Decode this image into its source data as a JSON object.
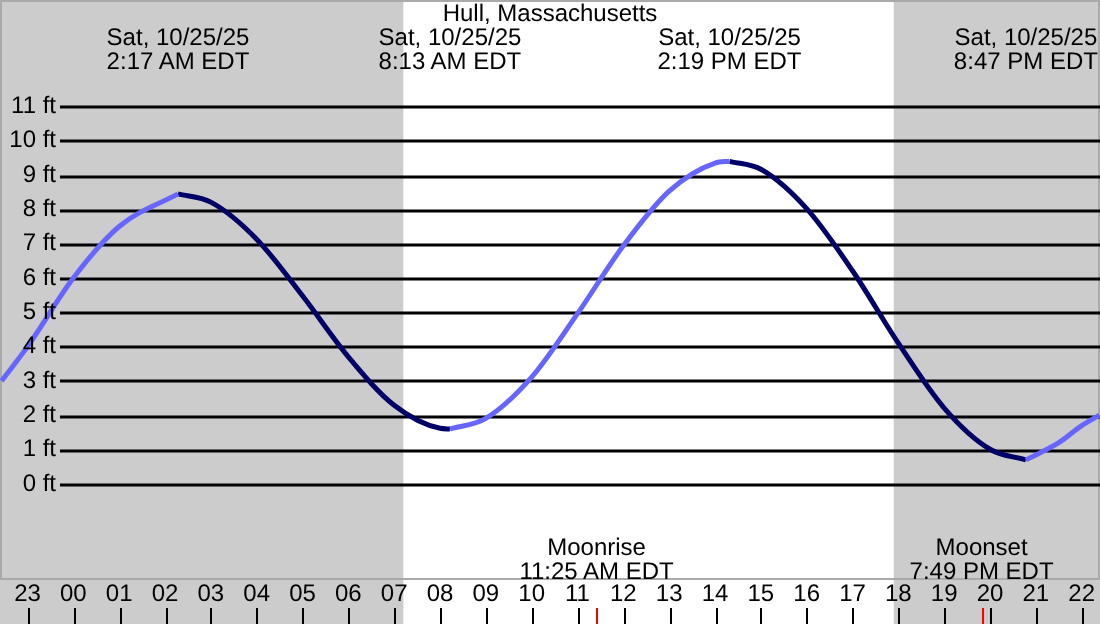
{
  "chart_data": {
    "type": "line",
    "title": "Hull, Massachusetts",
    "series": [
      {
        "color": "#6666ff",
        "x": [
          "--10-24T22:26",
          "--10-24T23:00",
          "--10-25T00:00",
          "--10-25T01:00",
          "--10-25T02:17",
          "--10-25T05:00",
          "--10-25T08:13",
          "--10-25T09:00",
          "--10-25T10:00",
          "--10-25T11:00",
          "--10-25T12:00",
          "--10-25T13:00",
          "--10-25T14:00",
          "--10-25T14:19",
          "--10-25T17:00",
          "--10-25T20:47",
          "--10-25T21:30",
          "--10-25T22:00",
          "--10-25T22:23"
        ],
        "values": [
          3.0,
          4.0,
          6.0,
          7.5,
          8.45,
          null,
          1.6,
          1.91,
          3.11,
          4.96,
          6.94,
          8.53,
          9.35,
          9.4,
          null,
          0.7,
          1.2,
          1.7,
          2.0
        ]
      },
      {
        "color": "#000066",
        "x": [
          "--10-25T02:17",
          "--10-25T03:00",
          "--10-25T04:00",
          "--10-25T05:00",
          "--10-25T06:00",
          "--10-25T07:00",
          "--10-25T08:00",
          "--10-25T08:13",
          "--10-25T11:00",
          "--10-25T14:19",
          "--10-25T15:00",
          "--10-25T16:00",
          "--10-25T17:00",
          "--10-25T18:00",
          "--10-25T19:00",
          "--10-25T20:00",
          "--10-25T20:47"
        ],
        "values": [
          8.45,
          8.21,
          7.13,
          5.48,
          3.7,
          2.29,
          1.62,
          1.6,
          null,
          9.4,
          9.17,
          8.02,
          6.21,
          4.1,
          2.21,
          1.01,
          0.7
        ]
      }
    ],
    "xlim": [
      "--10-24T22:24",
      "--10-25T22:24"
    ],
    "ylim": [
      -2.8,
      14.1
    ],
    "xticks": [
      {
        "value": "--10-24T23:00",
        "label": "23"
      },
      {
        "value": "--10-25T00:00",
        "label": "00"
      },
      {
        "value": "--10-25T01:00",
        "label": "01"
      },
      {
        "value": "--10-25T02:00",
        "label": "02"
      },
      {
        "value": "--10-25T03:00",
        "label": "03"
      },
      {
        "value": "--10-25T04:00",
        "label": "04"
      },
      {
        "value": "--10-25T05:00",
        "label": "05"
      },
      {
        "value": "--10-25T06:00",
        "label": "06"
      },
      {
        "value": "--10-25T07:00",
        "label": "07"
      },
      {
        "value": "--10-25T08:00",
        "label": "08"
      },
      {
        "value": "--10-25T09:00",
        "label": "09"
      },
      {
        "value": "--10-25T10:00",
        "label": "10"
      },
      {
        "value": "--10-25T11:00",
        "label": "11"
      },
      {
        "value": "--10-25T12:00",
        "label": "12"
      },
      {
        "value": "--10-25T13:00",
        "label": "13"
      },
      {
        "value": "--10-25T14:00",
        "label": "14"
      },
      {
        "value": "--10-25T15:00",
        "label": "15"
      },
      {
        "value": "--10-25T16:00",
        "label": "16"
      },
      {
        "value": "--10-25T17:00",
        "label": "17"
      },
      {
        "value": "--10-25T18:00",
        "label": "18"
      },
      {
        "value": "--10-25T19:00",
        "label": "19"
      },
      {
        "value": "--10-25T20:00",
        "label": "20"
      },
      {
        "value": "--10-25T21:00",
        "label": "21"
      },
      {
        "value": "--10-25T22:00",
        "label": "22"
      }
    ],
    "yticks": [
      {
        "value": 0,
        "label": "0 ft"
      },
      {
        "value": 1,
        "label": "1 ft"
      },
      {
        "value": 2,
        "label": "2 ft"
      },
      {
        "value": 3,
        "label": "3 ft"
      },
      {
        "value": 4,
        "label": "4 ft"
      },
      {
        "value": 5,
        "label": "5 ft"
      },
      {
        "value": 6,
        "label": "6 ft"
      },
      {
        "value": 7,
        "label": "7 ft"
      },
      {
        "value": 8,
        "label": "8 ft"
      },
      {
        "value": 9,
        "label": "9 ft"
      },
      {
        "value": 10,
        "label": "10 ft"
      },
      {
        "value": 11,
        "label": "11 ft"
      }
    ],
    "grid": "y",
    "legend": false,
    "marker": "none",
    "line_style": "solid",
    "bands": [
      {
        "axis": "x",
        "from": "--10-24T22:24",
        "to": "--10-25T07:12",
        "color": "#cccccc"
      },
      {
        "axis": "x",
        "from": "--10-25T17:54",
        "to": "--10-25T22:24",
        "color": "#cccccc"
      }
    ],
    "ref_lines": [
      {
        "axis": "x",
        "value": "--10-25T11:25",
        "label": "Moonrise\n11:25 AM EDT",
        "color": "#ff0000"
      },
      {
        "axis": "x",
        "value": "--10-25T19:49",
        "label": "Moonset\n7:49 PM EDT",
        "color": "#ff0000"
      }
    ],
    "annotations": [
      "Sat, 10/25/25\n2:17 AM EDT",
      "Sat, 10/25/25\n8:13 AM EDT",
      "Sat, 10/25/25\n2:19 PM EDT",
      "Sat, 10/25/25\n8:47 PM EDT"
    ]
  }
}
